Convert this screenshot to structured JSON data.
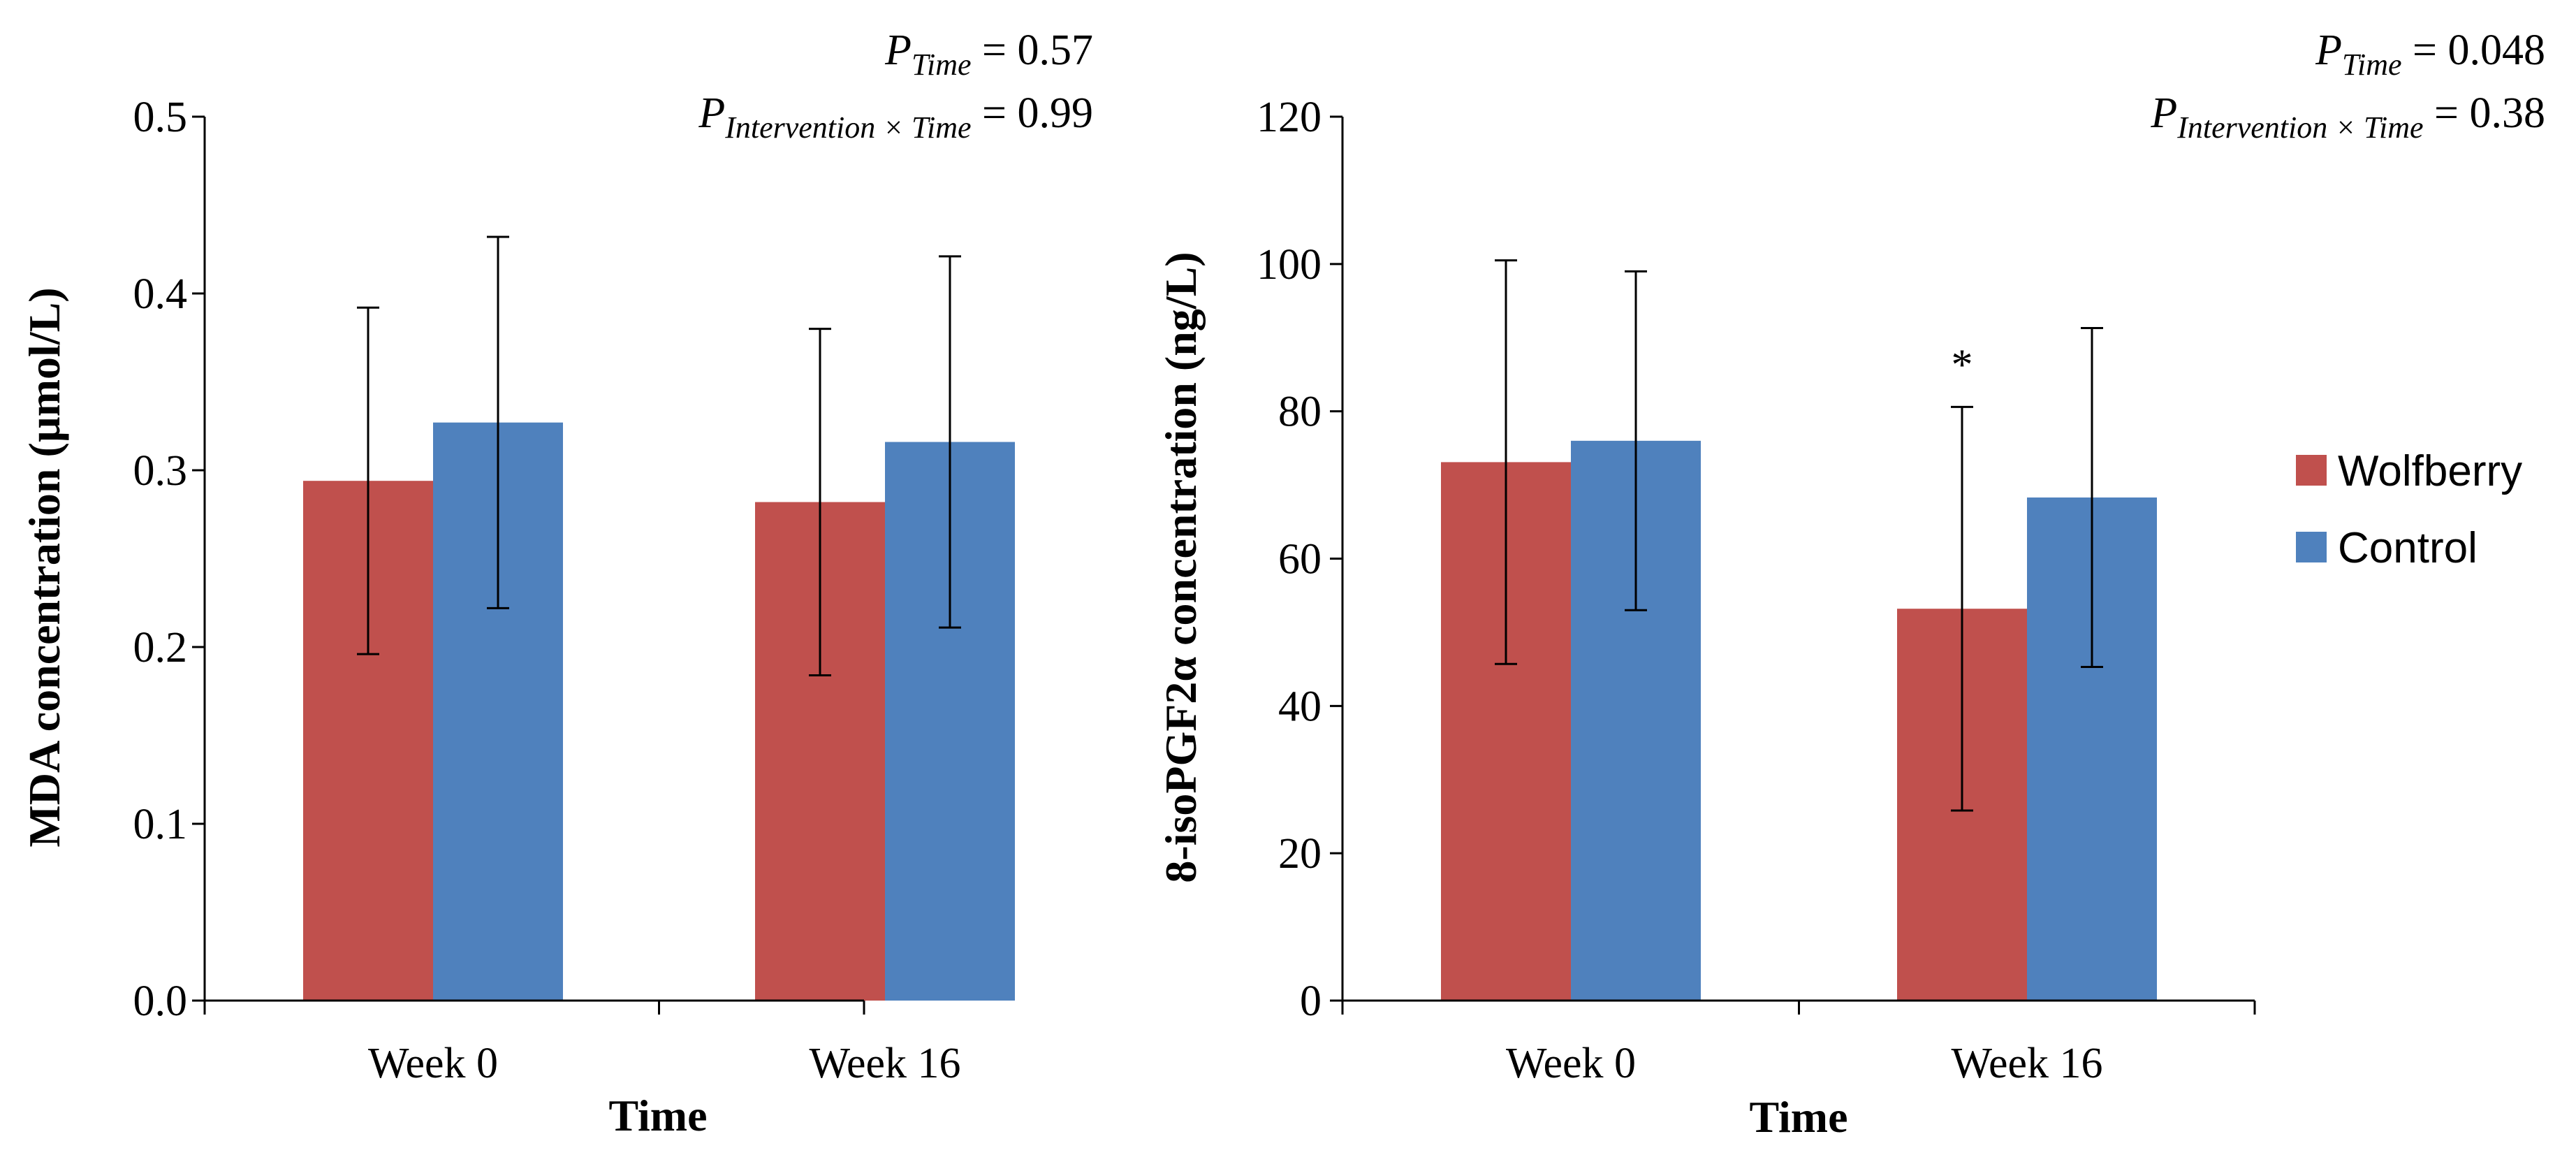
{
  "colors": {
    "wolfberry": "#c0504d",
    "control": "#4f81bd",
    "axis": "#000000"
  },
  "legend": {
    "items": [
      {
        "label": "Wolfberry",
        "color": "#c0504d"
      },
      {
        "label": "Control",
        "color": "#4f81bd"
      }
    ]
  },
  "chart_data": [
    {
      "type": "bar",
      "title": "",
      "xlabel": "Time",
      "ylabel": "MDA concentration  (µmol/L)",
      "ylim": [
        0,
        0.5
      ],
      "yticks": [
        "0.0",
        "0.1",
        "0.2",
        "0.3",
        "0.4",
        "0.5"
      ],
      "categories": [
        "Week 0",
        "Week 16"
      ],
      "series": [
        {
          "name": "Wolfberry",
          "values": [
            0.294,
            0.282
          ],
          "error": [
            0.098,
            0.098
          ]
        },
        {
          "name": "Control",
          "values": [
            0.327,
            0.316
          ],
          "error": [
            0.105,
            0.105
          ]
        }
      ],
      "annotations": [],
      "p_values": {
        "time": {
          "symbol": "P",
          "subscript": "Time",
          "value": "= 0.57"
        },
        "interaction": {
          "symbol": "P",
          "subscript": "Intervention × Time",
          "value": "= 0.99"
        }
      }
    },
    {
      "type": "bar",
      "title": "",
      "xlabel": "Time",
      "ylabel": "8-isoPGF2α concentration  (ng/L)",
      "ylim": [
        0,
        120
      ],
      "yticks": [
        "0",
        "20",
        "40",
        "60",
        "80",
        "100",
        "120"
      ],
      "categories": [
        "Week 0",
        "Week 16"
      ],
      "series": [
        {
          "name": "Wolfberry",
          "values": [
            73.1,
            53.2
          ],
          "error": [
            27.4,
            27.4
          ]
        },
        {
          "name": "Control",
          "values": [
            76.0,
            68.3
          ],
          "error": [
            23.0,
            23.0
          ]
        }
      ],
      "annotations": [
        {
          "text": "*",
          "series": 0,
          "category": 1
        }
      ],
      "p_values": {
        "time": {
          "symbol": "P",
          "subscript": "Time",
          "value": "= 0.048"
        },
        "interaction": {
          "symbol": "P",
          "subscript": "Intervention × Time",
          "value": "= 0.38"
        }
      }
    }
  ]
}
